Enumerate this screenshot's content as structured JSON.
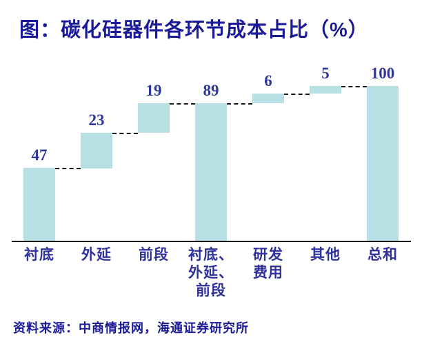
{
  "title": "图：碳化硅器件各环节成本占比（%）",
  "source": "资料来源：中商情报网，海通证券研究所",
  "colors": {
    "title": "#1b1b99",
    "value_label": "#2e3697",
    "category_label": "#2e3199",
    "bar_fill": "#b7dfe4",
    "axis_line": "#161616",
    "connector": "#111111",
    "background": "#ffffff"
  },
  "chart_data": {
    "type": "bar",
    "subtype": "waterfall",
    "title": "图：碳化硅器件各环节成本占比（%）",
    "unit": "%",
    "categories": [
      "衬底",
      "外延",
      "前段",
      "衬底、外延、前段",
      "研发费用",
      "其他",
      "总和"
    ],
    "category_display": [
      "衬底",
      "外延",
      "前段",
      "衬底、\n外延、\n前段",
      "研发\n费用",
      "其他",
      "总和"
    ],
    "values": [
      47,
      23,
      19,
      89,
      6,
      5,
      100
    ],
    "segment_starts": [
      0,
      47,
      70,
      0,
      89,
      95,
      0
    ],
    "data_labels": [
      "47",
      "23",
      "19",
      "89",
      "6",
      "5",
      "100"
    ],
    "ylim": [
      0,
      100
    ],
    "grid": false,
    "legend": false,
    "connector_style": "dashed",
    "orientation": "vertical"
  }
}
